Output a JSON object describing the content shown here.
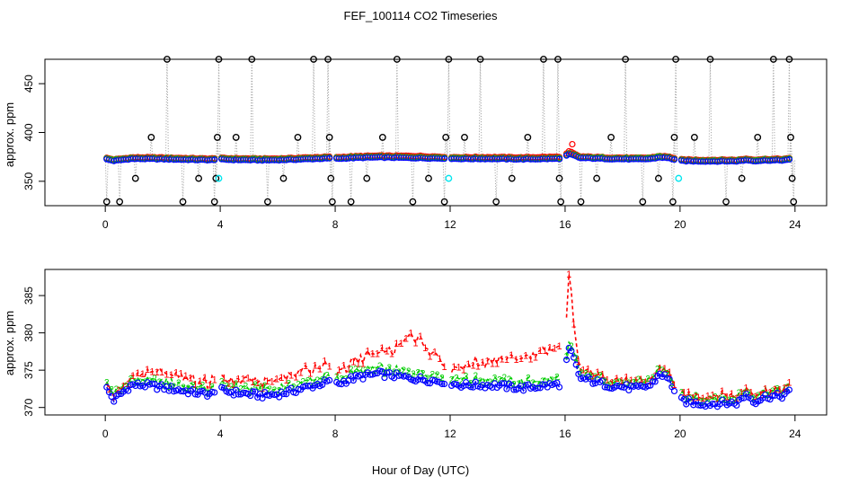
{
  "title": "FEF_100114  CO2 Timeseries",
  "xlabel": "Hour of Day (UTC)",
  "colors": {
    "background": "#ffffff",
    "axis": "#000000",
    "grid_line": "#a8a8a8",
    "red": "#ff0000",
    "green": "#00cd00",
    "blue": "#0000ff",
    "cyan": "#00e5ee",
    "black": "#000000"
  },
  "chart_data": [
    {
      "type": "scatter",
      "name": "top",
      "ylabel": "approx. ppm",
      "xlim": [
        -2.1,
        25.1
      ],
      "ylim": [
        325,
        475
      ],
      "xticks": [
        0,
        4,
        8,
        12,
        16,
        20,
        24
      ],
      "yticks": [
        350,
        400,
        450
      ],
      "cal_series_color": "black",
      "cal_high_value": 475,
      "cal_mid_value": 395,
      "cal_low_value": 353,
      "cal_bottom_value": 329,
      "cal_points": [
        [
          0.05,
          329
        ],
        [
          0.5,
          329
        ],
        [
          1.05,
          353
        ],
        [
          1.6,
          395
        ],
        [
          2.15,
          475
        ],
        [
          2.7,
          329
        ],
        [
          3.25,
          353
        ],
        [
          3.8,
          329
        ],
        [
          3.85,
          353
        ],
        [
          3.9,
          395
        ],
        [
          3.95,
          475
        ],
        [
          4.55,
          395
        ],
        [
          5.1,
          475
        ],
        [
          5.65,
          329
        ],
        [
          6.2,
          353
        ],
        [
          6.7,
          395
        ],
        [
          7.25,
          475
        ],
        [
          7.75,
          475
        ],
        [
          7.8,
          395
        ],
        [
          7.85,
          353
        ],
        [
          7.9,
          329
        ],
        [
          8.55,
          329
        ],
        [
          9.1,
          353
        ],
        [
          9.65,
          395
        ],
        [
          10.15,
          475
        ],
        [
          10.7,
          329
        ],
        [
          11.25,
          353
        ],
        [
          11.8,
          329
        ],
        [
          11.85,
          395
        ],
        [
          11.95,
          475
        ],
        [
          12.5,
          395
        ],
        [
          13.05,
          475
        ],
        [
          13.6,
          329
        ],
        [
          14.15,
          353
        ],
        [
          14.7,
          395
        ],
        [
          15.25,
          475
        ],
        [
          15.75,
          475
        ],
        [
          15.8,
          353
        ],
        [
          15.85,
          329
        ],
        [
          16.55,
          329
        ],
        [
          17.1,
          353
        ],
        [
          17.6,
          395
        ],
        [
          18.1,
          475
        ],
        [
          18.7,
          329
        ],
        [
          19.25,
          353
        ],
        [
          19.75,
          329
        ],
        [
          19.8,
          395
        ],
        [
          19.85,
          475
        ],
        [
          20.5,
          395
        ],
        [
          21.05,
          475
        ],
        [
          21.6,
          329
        ],
        [
          22.15,
          353
        ],
        [
          22.7,
          395
        ],
        [
          23.25,
          475
        ],
        [
          23.8,
          475
        ],
        [
          23.85,
          395
        ],
        [
          23.9,
          353
        ],
        [
          23.95,
          329
        ]
      ],
      "cyan_points": [
        [
          3.95,
          353
        ],
        [
          11.95,
          353
        ],
        [
          19.95,
          353
        ]
      ],
      "series_keys": [
        "red",
        "green",
        "blue"
      ]
    },
    {
      "type": "line",
      "name": "bottom",
      "ylabel": "approx. ppm",
      "xlim": [
        -2.1,
        25.1
      ],
      "ylim": [
        369,
        388.5
      ],
      "xticks": [
        0,
        4,
        8,
        12,
        16,
        20,
        24
      ],
      "yticks": [
        370,
        375,
        380,
        385
      ],
      "series": [
        {
          "name": "1",
          "color": "red",
          "marker": "1"
        },
        {
          "name": "2",
          "color": "green",
          "marker": "2"
        },
        {
          "name": "3",
          "color": "blue",
          "marker": "o"
        }
      ]
    }
  ],
  "base_profile": {
    "x": [
      0.05,
      0.3,
      0.6,
      0.9,
      1.3,
      1.8,
      2.3,
      2.8,
      3.3,
      3.8,
      4.0,
      4.5,
      5.0,
      5.5,
      6.0,
      6.5,
      7.0,
      7.5,
      7.8,
      8.0,
      8.5,
      9.0,
      9.5,
      10.0,
      10.5,
      11.0,
      11.5,
      11.9,
      12.0,
      12.5,
      13.0,
      13.5,
      14.0,
      14.5,
      15.0,
      15.5,
      15.9,
      16.0,
      16.15,
      16.3,
      16.5,
      17.0,
      17.5,
      18.0,
      18.5,
      19.0,
      19.3,
      19.6,
      20.0,
      20.5,
      21.0,
      21.5,
      22.0,
      22.3,
      22.6,
      23.0,
      23.5,
      23.8
    ],
    "y": [
      372.5,
      371.0,
      372.0,
      373.0,
      373.0,
      372.8,
      372.5,
      372.2,
      371.9,
      371.8,
      372.3,
      372.0,
      371.8,
      371.6,
      371.8,
      372.2,
      372.7,
      373.2,
      373.5,
      373.0,
      373.8,
      374.2,
      374.5,
      374.3,
      374.0,
      373.8,
      373.6,
      373.5,
      373.2,
      373.0,
      373.0,
      373.0,
      372.8,
      372.6,
      372.8,
      373.0,
      373.2,
      375.0,
      378.0,
      376.5,
      374.0,
      373.5,
      373.0,
      372.8,
      372.5,
      373.0,
      374.6,
      373.8,
      371.0,
      370.6,
      370.5,
      370.6,
      370.6,
      371.8,
      370.8,
      371.5,
      371.5,
      372.0
    ]
  },
  "red_offset_profile": {
    "x": [
      0.05,
      0.5,
      1.5,
      4.0,
      7.8,
      8.0,
      10.0,
      10.6,
      11.9,
      12.0,
      13.0,
      15.9,
      16.0,
      16.15,
      16.3,
      16.5,
      19.0,
      20.0,
      21.5,
      22.0,
      23.8
    ],
    "y": [
      0.3,
      0.6,
      1.6,
      1.1,
      1.8,
      0.8,
      2.8,
      5.5,
      2.0,
      1.6,
      2.6,
      4.5,
      3.0,
      10.5,
      4.5,
      1.0,
      0.6,
      0.9,
      1.0,
      0.8,
      0.8
    ]
  },
  "green_offset": 0.8,
  "cal_gaps": [
    [
      3.85,
      4.0
    ],
    [
      7.8,
      8.0
    ],
    [
      11.85,
      12.0
    ],
    [
      15.85,
      16.0
    ],
    [
      19.85,
      20.0
    ]
  ],
  "top_red_bias": 1.2,
  "top_green_bias": 0.5
}
